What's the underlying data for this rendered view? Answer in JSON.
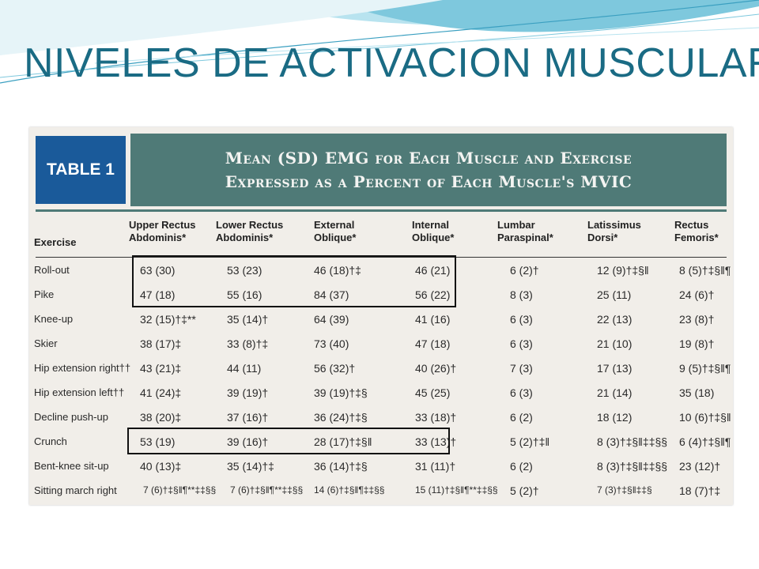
{
  "slide": {
    "title": "NIVELES DE ACTIVACION MUSCULAR",
    "decor_colors": [
      "#7ec8dd",
      "#b8e3ef",
      "#3a9fc0"
    ]
  },
  "table": {
    "label": "TABLE 1",
    "caption_line1": "Mean (SD) EMG for Each Muscle and Exercise",
    "caption_line2": "Expressed as a Percent of Each Muscle's MVIC",
    "header_color": "#4f7a77",
    "label_color": "#1a5a9a",
    "columns": [
      "Exercise",
      "Upper Rectus\nAbdominis*",
      "Lower Rectus\nAbdominis*",
      "External\nOblique*",
      "Internal\nOblique*",
      "Lumbar\nParaspinal*",
      "Latissimus\nDorsi*",
      "Rectus\nFemoris*"
    ],
    "rows": [
      {
        "exercise": "Roll-out",
        "cells": [
          "63 (30)",
          "53 (23)",
          "46 (18)†‡",
          "46 (21)",
          "6 (2)†",
          "12 (9)†‡§‖",
          "8 (5)†‡§‖¶"
        ]
      },
      {
        "exercise": "Pike",
        "cells": [
          "47 (18)",
          "55 (16)",
          "84 (37)",
          "56 (22)",
          "8 (3)",
          "25 (11)",
          "24 (6)†"
        ]
      },
      {
        "exercise": "Knee-up",
        "cells": [
          "32 (15)†‡**",
          "35 (14)†",
          "64 (39)",
          "41 (16)",
          "6 (3)",
          "22 (13)",
          "23 (8)†"
        ]
      },
      {
        "exercise": "Skier",
        "cells": [
          "38 (17)‡",
          "33 (8)†‡",
          "73 (40)",
          "47 (18)",
          "6 (3)",
          "21 (10)",
          "19 (8)†"
        ]
      },
      {
        "exercise": "Hip extension right††",
        "cells": [
          "43 (21)‡",
          "44 (11)",
          "56 (32)†",
          "40 (26)†",
          "7 (3)",
          "17 (13)",
          "9 (5)†‡§‖¶"
        ]
      },
      {
        "exercise": "Hip extension left††",
        "cells": [
          "41 (24)‡",
          "39 (19)†",
          "39 (19)†‡§",
          "45 (25)",
          "6 (3)",
          "21 (14)",
          "35 (18)"
        ]
      },
      {
        "exercise": "Decline push-up",
        "cells": [
          "38 (20)‡",
          "37 (16)†",
          "36 (24)†‡§",
          "33 (18)†",
          "6 (2)",
          "18 (12)",
          "10 (6)†‡§‖"
        ]
      },
      {
        "exercise": "Crunch",
        "cells": [
          "53 (19)",
          "39 (16)†",
          "28 (17)†‡§‖",
          "33 (13)†",
          "5 (2)†‡‖",
          "8 (3)†‡§‖‡‡§§",
          "6 (4)†‡§‖¶"
        ]
      },
      {
        "exercise": "Bent-knee sit-up",
        "cells": [
          "40 (13)‡",
          "35 (14)†‡",
          "36 (14)†‡§",
          "31 (11)†",
          "6 (2)",
          "8 (3)†‡§‖‡‡§§",
          "23 (12)†"
        ]
      },
      {
        "exercise": "Sitting march right",
        "cells": [
          "7 (6)†‡§‖¶**‡‡§§",
          "7 (6)†‡§‖¶**‡‡§§",
          "14 (6)†‡§‖¶‡‡§§",
          "15 (11)†‡§‖¶**‡‡§§",
          "5 (2)†",
          "7 (3)†‡§‖‡‡§",
          "18 (7)†‡"
        ]
      }
    ]
  }
}
